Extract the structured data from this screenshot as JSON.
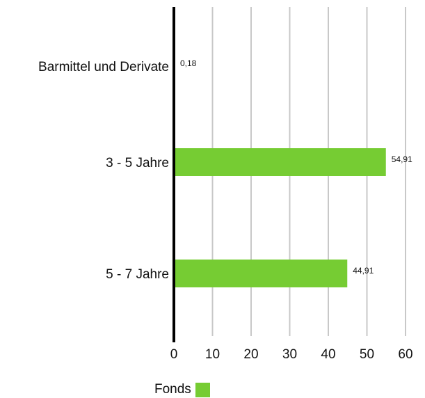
{
  "chart_data": {
    "type": "bar",
    "orientation": "horizontal",
    "categories": [
      "Barmittel und Derivate",
      "3 - 5 Jahre",
      "5 - 7 Jahre"
    ],
    "series": [
      {
        "name": "Fonds",
        "values": [
          0.18,
          54.91,
          44.91
        ],
        "value_labels": [
          "0,18",
          "54,91",
          "44,91"
        ],
        "color": "#76cc33"
      }
    ],
    "xlim": [
      0,
      60
    ],
    "x_ticks": [
      0,
      10,
      20,
      30,
      40,
      50,
      60
    ],
    "grid": true,
    "grid_color": "#c8c8c8",
    "axis_color": "#000000",
    "legend_position": "bottom-center"
  }
}
